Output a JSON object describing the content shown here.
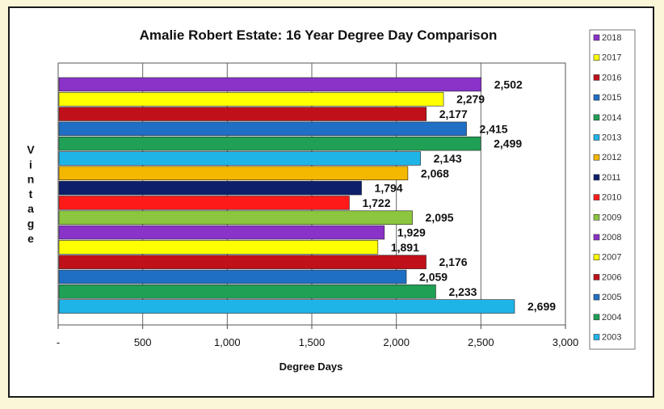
{
  "chart_data": {
    "type": "bar",
    "orientation": "horizontal",
    "title": "Amalie Robert Estate: 16 Year Degree Day Comparison",
    "xlabel": "Degree Days",
    "ylabel": "Vintage",
    "xlim": [
      0,
      3000
    ],
    "x_ticks": [
      0,
      500,
      1000,
      1500,
      2000,
      2500,
      3000
    ],
    "x_tick_labels": [
      "-",
      "500",
      "1,000",
      "1,500",
      "2,000",
      "2,500",
      "3,000"
    ],
    "grid": "vertical lines at major ticks",
    "legend_position": "right",
    "bars": [
      {
        "year": "2018",
        "value": 2502,
        "label": "2,502",
        "color": "#8a33c9"
      },
      {
        "year": "2017",
        "value": 2279,
        "label": "2,279",
        "color": "#ffff00"
      },
      {
        "year": "2016",
        "value": 2177,
        "label": "2,177",
        "color": "#c0101a"
      },
      {
        "year": "2015",
        "value": 2415,
        "label": "2,415",
        "color": "#1f6fc4"
      },
      {
        "year": "2014",
        "value": 2499,
        "label": "2,499",
        "color": "#1fa055"
      },
      {
        "year": "2013",
        "value": 2143,
        "label": "2,143",
        "color": "#1fb4e8"
      },
      {
        "year": "2012",
        "value": 2068,
        "label": "2,068",
        "color": "#f5b800"
      },
      {
        "year": "2011",
        "value": 1794,
        "label": "1,794",
        "color": "#0d1f6b"
      },
      {
        "year": "2010",
        "value": 1722,
        "label": "1,722",
        "color": "#ff1a1a"
      },
      {
        "year": "2009",
        "value": 2095,
        "label": "2,095",
        "color": "#8cc63f"
      },
      {
        "year": "2008",
        "value": 1929,
        "label": "1,929",
        "color": "#8a33c9"
      },
      {
        "year": "2007",
        "value": 1891,
        "label": "1,891",
        "color": "#ffff00"
      },
      {
        "year": "2006",
        "value": 2176,
        "label": "2,176",
        "color": "#c0101a"
      },
      {
        "year": "2005",
        "value": 2059,
        "label": "2,059",
        "color": "#1f6fc4"
      },
      {
        "year": "2004",
        "value": 2233,
        "label": "2,233",
        "color": "#1fa055"
      },
      {
        "year": "2003",
        "value": 2699,
        "label": "2,699",
        "color": "#1fb4e8"
      }
    ]
  }
}
